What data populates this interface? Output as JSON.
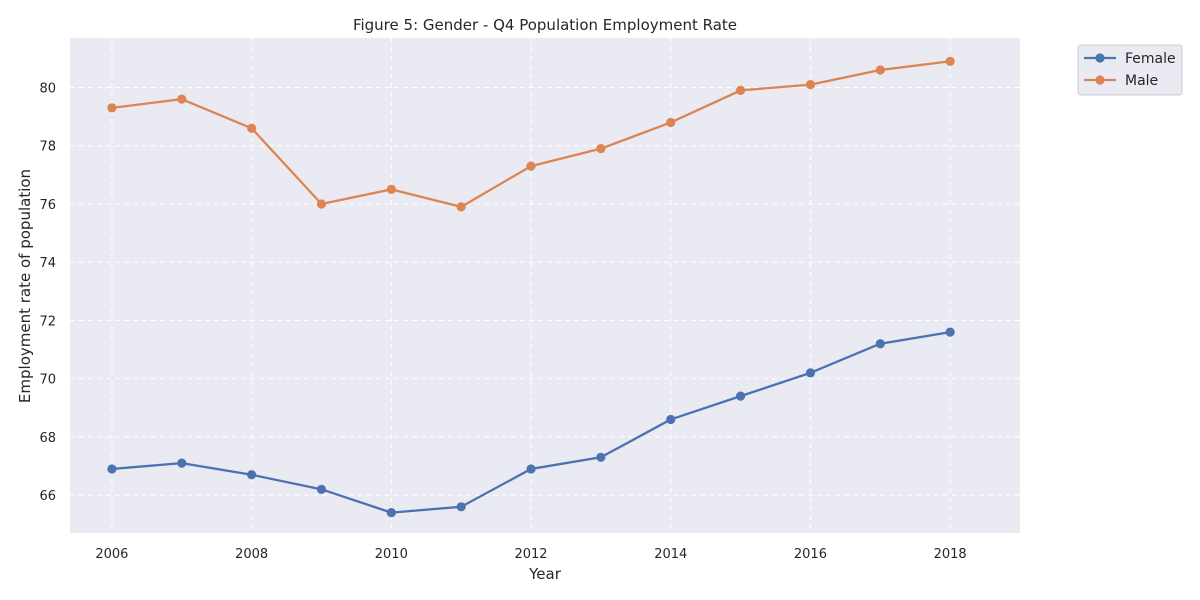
{
  "chart_data": {
    "type": "line",
    "title": "Figure 5: Gender - Q4 Population Employment Rate",
    "xlabel": "Year",
    "ylabel": "Employment rate of population",
    "x": [
      2006,
      2007,
      2008,
      2009,
      2010,
      2011,
      2012,
      2013,
      2014,
      2015,
      2016,
      2017,
      2018
    ],
    "xticks": [
      2006,
      2008,
      2010,
      2012,
      2014,
      2016,
      2018
    ],
    "yticks": [
      66,
      68,
      70,
      72,
      74,
      76,
      78,
      80
    ],
    "xlim": [
      2005.4,
      2019.0
    ],
    "ylim": [
      64.7,
      81.7
    ],
    "grid": true,
    "grid_style": "dashed",
    "legend_placement": "outside-top-right",
    "background_color": "#eaeaf2",
    "series": [
      {
        "name": "Female",
        "color": "#4c72b0",
        "marker": "circle",
        "values": [
          66.9,
          67.1,
          66.7,
          66.2,
          65.4,
          65.6,
          66.9,
          67.3,
          68.6,
          69.4,
          70.2,
          71.2,
          71.6
        ]
      },
      {
        "name": "Male",
        "color": "#dd8452",
        "marker": "circle",
        "values": [
          79.3,
          79.6,
          78.6,
          76.0,
          76.5,
          75.9,
          77.3,
          77.9,
          78.8,
          79.9,
          80.1,
          80.6,
          80.9
        ]
      }
    ]
  }
}
